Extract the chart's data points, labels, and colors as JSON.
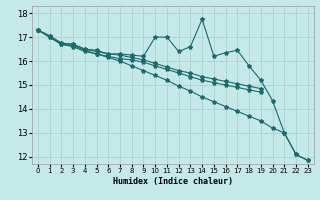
{
  "title": "",
  "xlabel": "Humidex (Indice chaleur)",
  "bg_color": "#c5e8e8",
  "grid_color": "#a8cece",
  "line_color": "#1a6b6b",
  "xlim": [
    -0.5,
    23.5
  ],
  "ylim": [
    11.7,
    18.3
  ],
  "yticks": [
    12,
    13,
    14,
    15,
    16,
    17,
    18
  ],
  "xticks": [
    0,
    1,
    2,
    3,
    4,
    5,
    6,
    7,
    8,
    9,
    10,
    11,
    12,
    13,
    14,
    15,
    16,
    17,
    18,
    19,
    20,
    21,
    22,
    23
  ],
  "line_jagged": [
    17.3,
    17.05,
    16.75,
    16.7,
    16.5,
    16.45,
    16.3,
    16.3,
    16.25,
    16.2,
    17.0,
    17.0,
    16.4,
    16.6,
    17.75,
    16.2,
    16.35,
    16.45,
    15.8,
    15.2,
    14.35,
    13.0,
    12.1,
    11.85
  ],
  "line_smooth1": [
    17.3,
    17.05,
    16.75,
    16.7,
    16.5,
    16.4,
    16.3,
    16.25,
    16.15,
    16.05,
    15.9,
    15.75,
    15.6,
    15.5,
    15.35,
    15.25,
    15.15,
    15.05,
    14.95,
    14.85,
    null,
    null,
    null,
    null
  ],
  "line_smooth2": [
    17.3,
    17.0,
    16.7,
    16.65,
    16.45,
    16.3,
    16.2,
    16.1,
    16.05,
    15.95,
    15.8,
    15.65,
    15.5,
    15.35,
    15.2,
    15.1,
    15.0,
    14.9,
    14.8,
    14.7,
    null,
    null,
    null,
    null
  ],
  "line_steep": [
    17.3,
    17.0,
    16.7,
    16.6,
    16.4,
    16.3,
    16.15,
    16.0,
    15.8,
    15.6,
    15.4,
    15.2,
    14.95,
    14.75,
    14.5,
    14.3,
    14.1,
    13.9,
    13.7,
    13.5,
    13.2,
    13.0,
    12.1,
    11.85
  ]
}
